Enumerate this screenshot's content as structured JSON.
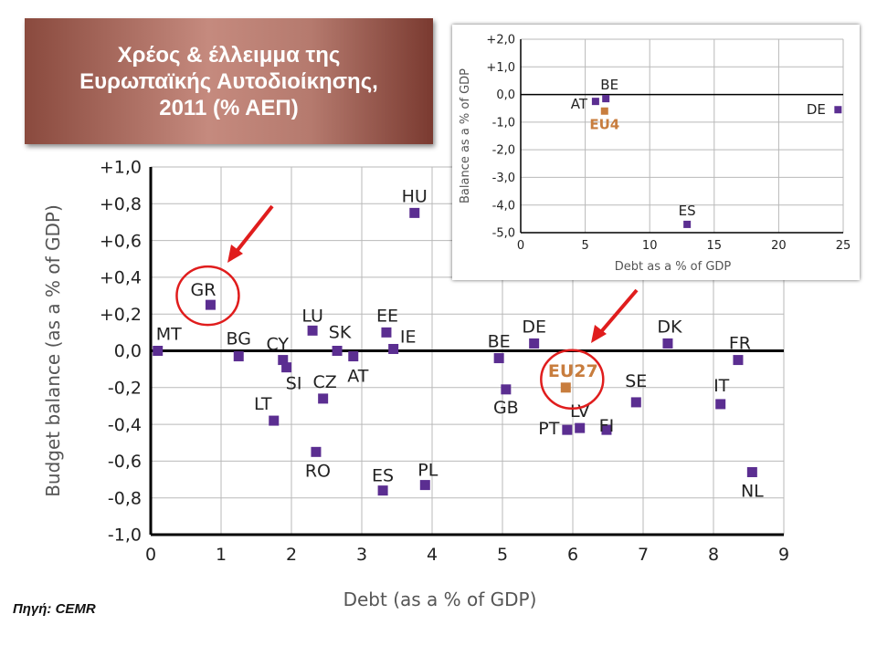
{
  "header": {
    "title_line1": "Χρέος & έλλειμμα της",
    "title_line2": "Ευρωπαϊκής Αυτοδιοίκησης,",
    "title_line3": "2011 (% ΑΕΠ)"
  },
  "source": "Πηγή: CEMR",
  "colors": {
    "point": "#5b2e91",
    "aggregate": "#c87d3e",
    "highlight": "#e01d1d",
    "axis": "#000000",
    "grid": "#b9b9b9",
    "tick_text": "#222222",
    "axis_label": "#555555"
  },
  "chart_data": [
    {
      "id": "main",
      "type": "scatter",
      "xlabel": "Debt (as a % of GDP)",
      "ylabel": "Budget balance (as a % of GDP)",
      "xlim": [
        0,
        9
      ],
      "ylim": [
        -1.0,
        1.0
      ],
      "xticks": [
        "0",
        "1",
        "2",
        "3",
        "4",
        "5",
        "6",
        "7",
        "8",
        "9"
      ],
      "yticks": [
        "+1,0",
        "+0,8",
        "+0,6",
        "+0,4",
        "+0,2",
        "0,0",
        "-0,2",
        "-0,4",
        "-0,6",
        "-0,8",
        "-1,0"
      ],
      "grid": true,
      "zero_line": true,
      "points": [
        {
          "label": "MT",
          "x": 0.1,
          "y": 0.0
        },
        {
          "label": "GR",
          "x": 0.85,
          "y": 0.25,
          "highlight": true
        },
        {
          "label": "BG",
          "x": 1.25,
          "y": -0.03
        },
        {
          "label": "LT",
          "x": 1.75,
          "y": -0.38
        },
        {
          "label": "CY",
          "x": 1.88,
          "y": -0.05
        },
        {
          "label": "SI",
          "x": 1.93,
          "y": -0.09
        },
        {
          "label": "LU",
          "x": 2.3,
          "y": 0.11
        },
        {
          "label": "RO",
          "x": 2.35,
          "y": -0.55
        },
        {
          "label": "CZ",
          "x": 2.45,
          "y": -0.26
        },
        {
          "label": "SK",
          "x": 2.65,
          "y": 0.0
        },
        {
          "label": "AT",
          "x": 2.88,
          "y": -0.03
        },
        {
          "label": "ES",
          "x": 3.3,
          "y": -0.76
        },
        {
          "label": "EE",
          "x": 3.35,
          "y": 0.1
        },
        {
          "label": "IE",
          "x": 3.45,
          "y": 0.01
        },
        {
          "label": "HU",
          "x": 3.75,
          "y": 0.75
        },
        {
          "label": "PL",
          "x": 3.9,
          "y": -0.73
        },
        {
          "label": "BE",
          "x": 4.95,
          "y": -0.04
        },
        {
          "label": "GB",
          "x": 5.05,
          "y": -0.21
        },
        {
          "label": "DE",
          "x": 5.45,
          "y": 0.04
        },
        {
          "label": "PT",
          "x": 5.92,
          "y": -0.43
        },
        {
          "label": "EU27",
          "x": 5.9,
          "y": -0.2,
          "aggregate": true,
          "highlight": true
        },
        {
          "label": "LV",
          "x": 6.1,
          "y": -0.42
        },
        {
          "label": "FI",
          "x": 6.48,
          "y": -0.43
        },
        {
          "label": "SE",
          "x": 6.9,
          "y": -0.28
        },
        {
          "label": "DK",
          "x": 7.35,
          "y": 0.04
        },
        {
          "label": "IT",
          "x": 8.1,
          "y": -0.29
        },
        {
          "label": "FR",
          "x": 8.35,
          "y": -0.05
        },
        {
          "label": "NL",
          "x": 8.55,
          "y": -0.66
        }
      ]
    },
    {
      "id": "inset",
      "type": "scatter",
      "xlabel": "Debt as a % of GDP",
      "ylabel": "Balance as a % of GDP",
      "xlim": [
        0,
        25
      ],
      "ylim": [
        -5.0,
        2.0
      ],
      "xticks": [
        "0",
        "5",
        "10",
        "15",
        "20",
        "25"
      ],
      "yticks": [
        "+2,0",
        "+1,0",
        "0,0",
        "-1,0",
        "-2,0",
        "-3,0",
        "-4,0",
        "-5,0"
      ],
      "grid": true,
      "zero_line": true,
      "points": [
        {
          "label": "AT",
          "x": 5.8,
          "y": -0.25
        },
        {
          "label": "BE",
          "x": 6.6,
          "y": -0.15
        },
        {
          "label": "EU4",
          "x": 6.5,
          "y": -0.6,
          "aggregate": true
        },
        {
          "label": "ES",
          "x": 12.9,
          "y": -4.7
        },
        {
          "label": "DE",
          "x": 24.6,
          "y": -0.55
        }
      ]
    }
  ]
}
